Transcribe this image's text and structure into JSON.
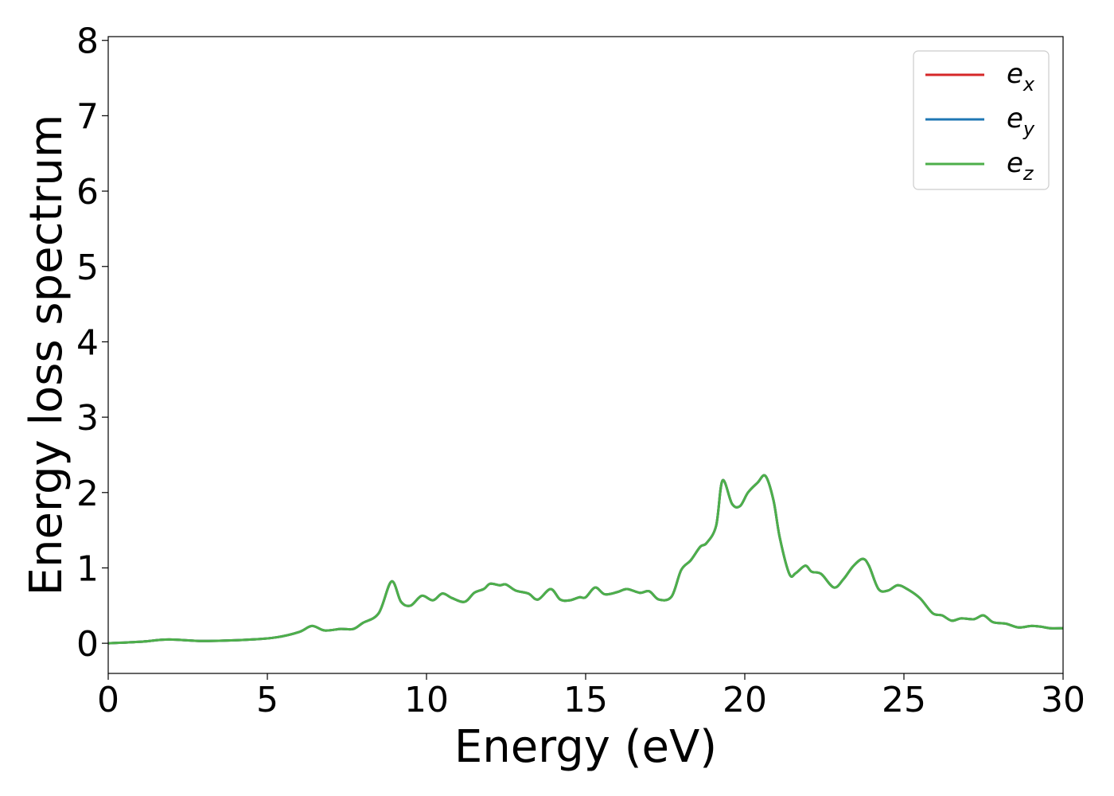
{
  "chart_data": {
    "type": "line",
    "title": "",
    "xlabel": "Energy (eV)",
    "ylabel": "Energy loss spectrum",
    "xlim": [
      0,
      30
    ],
    "ylim": [
      -0.4,
      8.05
    ],
    "xticks": [
      0,
      5,
      10,
      15,
      20,
      25,
      30
    ],
    "yticks": [
      0,
      1,
      2,
      3,
      4,
      5,
      6,
      7,
      8
    ],
    "xtick_labels": [
      "0",
      "5",
      "10",
      "15",
      "20",
      "25",
      "30"
    ],
    "ytick_labels": [
      "0",
      "1",
      "2",
      "3",
      "4",
      "5",
      "6",
      "7",
      "8"
    ],
    "grid": false,
    "legend_position": "top-right",
    "x": [
      0,
      1,
      1.9,
      3,
      4.5,
      5.3,
      6,
      6.4,
      6.8,
      7.3,
      7.7,
      8,
      8.5,
      8.9,
      9.2,
      9.5,
      9.85,
      10.2,
      10.5,
      10.8,
      11.2,
      11.5,
      11.8,
      12.0,
      12.3,
      12.5,
      12.8,
      13.2,
      13.5,
      13.9,
      14.2,
      14.5,
      14.8,
      15.0,
      15.3,
      15.6,
      16.0,
      16.3,
      16.7,
      17.0,
      17.3,
      17.7,
      18.0,
      18.3,
      18.6,
      18.8,
      19.1,
      19.3,
      19.6,
      19.85,
      20.1,
      20.4,
      20.65,
      20.9,
      21.1,
      21.4,
      21.6,
      21.9,
      22.1,
      22.4,
      22.8,
      23.1,
      23.4,
      23.7,
      23.9,
      24.2,
      24.5,
      24.8,
      25.1,
      25.5,
      25.9,
      26.2,
      26.5,
      26.8,
      27.2,
      27.5,
      27.8,
      28.2,
      28.6,
      29.0,
      29.3,
      29.6,
      30.0
    ],
    "series": [
      {
        "name": "e_x",
        "label_base": "e",
        "label_sub": "x",
        "color": "#d62728",
        "values": [
          0.0,
          0.02,
          0.05,
          0.03,
          0.05,
          0.08,
          0.15,
          0.23,
          0.17,
          0.19,
          0.19,
          0.27,
          0.4,
          0.82,
          0.55,
          0.5,
          0.63,
          0.57,
          0.66,
          0.6,
          0.55,
          0.67,
          0.72,
          0.79,
          0.77,
          0.78,
          0.7,
          0.66,
          0.58,
          0.72,
          0.58,
          0.57,
          0.61,
          0.61,
          0.74,
          0.65,
          0.68,
          0.72,
          0.67,
          0.69,
          0.58,
          0.62,
          0.97,
          1.1,
          1.28,
          1.33,
          1.56,
          2.16,
          1.85,
          1.82,
          2.0,
          2.13,
          2.22,
          1.9,
          1.4,
          0.92,
          0.93,
          1.03,
          0.95,
          0.92,
          0.74,
          0.85,
          1.02,
          1.12,
          1.03,
          0.72,
          0.7,
          0.77,
          0.72,
          0.6,
          0.4,
          0.37,
          0.3,
          0.33,
          0.32,
          0.37,
          0.28,
          0.26,
          0.21,
          0.23,
          0.22,
          0.2,
          0.2
        ]
      },
      {
        "name": "e_y",
        "label_base": "e",
        "label_sub": "y",
        "color": "#1f77b4",
        "values": [
          0.0,
          0.02,
          0.05,
          0.03,
          0.05,
          0.08,
          0.15,
          0.23,
          0.17,
          0.19,
          0.19,
          0.27,
          0.4,
          0.82,
          0.55,
          0.5,
          0.63,
          0.57,
          0.66,
          0.6,
          0.55,
          0.67,
          0.72,
          0.79,
          0.77,
          0.78,
          0.7,
          0.66,
          0.58,
          0.72,
          0.58,
          0.57,
          0.61,
          0.61,
          0.74,
          0.65,
          0.68,
          0.72,
          0.67,
          0.69,
          0.58,
          0.62,
          0.97,
          1.1,
          1.28,
          1.33,
          1.56,
          2.16,
          1.85,
          1.82,
          2.0,
          2.13,
          2.22,
          1.9,
          1.4,
          0.92,
          0.93,
          1.03,
          0.95,
          0.92,
          0.74,
          0.85,
          1.02,
          1.12,
          1.03,
          0.72,
          0.7,
          0.77,
          0.72,
          0.6,
          0.4,
          0.37,
          0.3,
          0.33,
          0.32,
          0.37,
          0.28,
          0.26,
          0.21,
          0.23,
          0.22,
          0.2,
          0.2
        ]
      },
      {
        "name": "e_z",
        "label_base": "e",
        "label_sub": "z",
        "color": "#4daf4a",
        "values": [
          0.0,
          0.02,
          0.05,
          0.03,
          0.05,
          0.08,
          0.15,
          0.23,
          0.17,
          0.19,
          0.19,
          0.27,
          0.4,
          0.82,
          0.55,
          0.5,
          0.63,
          0.57,
          0.66,
          0.6,
          0.55,
          0.67,
          0.72,
          0.79,
          0.77,
          0.78,
          0.7,
          0.66,
          0.58,
          0.72,
          0.58,
          0.57,
          0.61,
          0.61,
          0.74,
          0.65,
          0.68,
          0.72,
          0.67,
          0.69,
          0.58,
          0.62,
          0.97,
          1.1,
          1.28,
          1.33,
          1.56,
          2.16,
          1.85,
          1.82,
          2.0,
          2.13,
          2.22,
          1.9,
          1.4,
          0.92,
          0.93,
          1.03,
          0.95,
          0.92,
          0.74,
          0.85,
          1.02,
          1.12,
          1.03,
          0.72,
          0.7,
          0.77,
          0.72,
          0.6,
          0.4,
          0.37,
          0.3,
          0.33,
          0.32,
          0.37,
          0.28,
          0.26,
          0.21,
          0.23,
          0.22,
          0.2,
          0.2
        ]
      }
    ]
  }
}
